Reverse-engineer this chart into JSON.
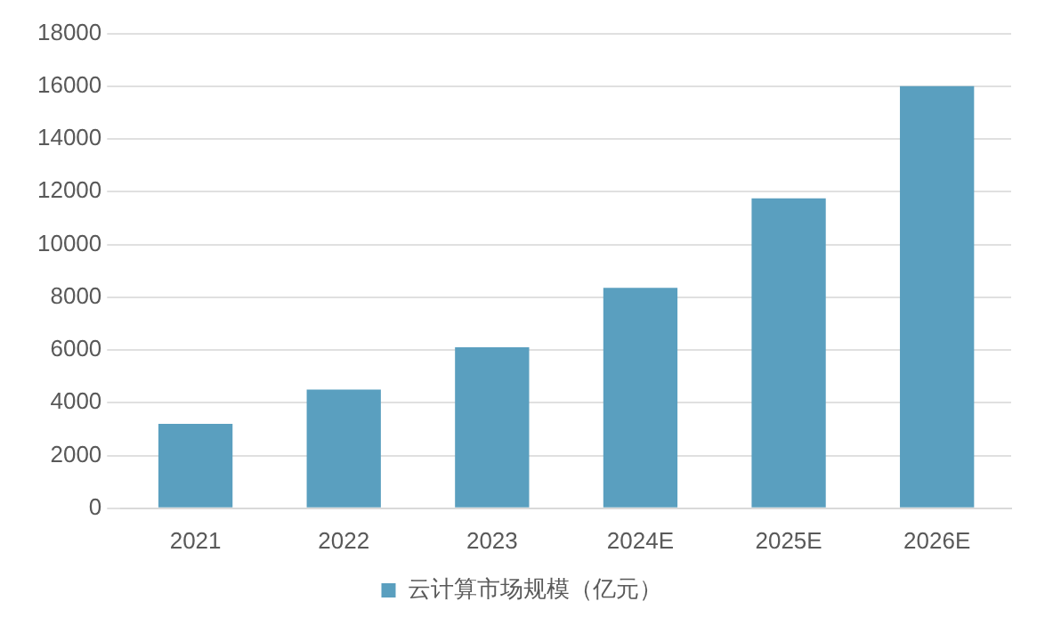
{
  "chart_data": {
    "type": "bar",
    "categories": [
      "2021",
      "2022",
      "2023",
      "2024E",
      "2025E",
      "2026E"
    ],
    "series": [
      {
        "name": "云计算市场规模（亿元）",
        "color": "#5a9fbf",
        "values": [
          3200,
          4500,
          6100,
          8360,
          11750,
          16000
        ]
      }
    ],
    "ylim": [
      0,
      18000
    ],
    "yticks": [
      0,
      2000,
      4000,
      6000,
      8000,
      10000,
      12000,
      14000,
      16000,
      18000
    ],
    "grid": "y",
    "legend": "bottom"
  }
}
